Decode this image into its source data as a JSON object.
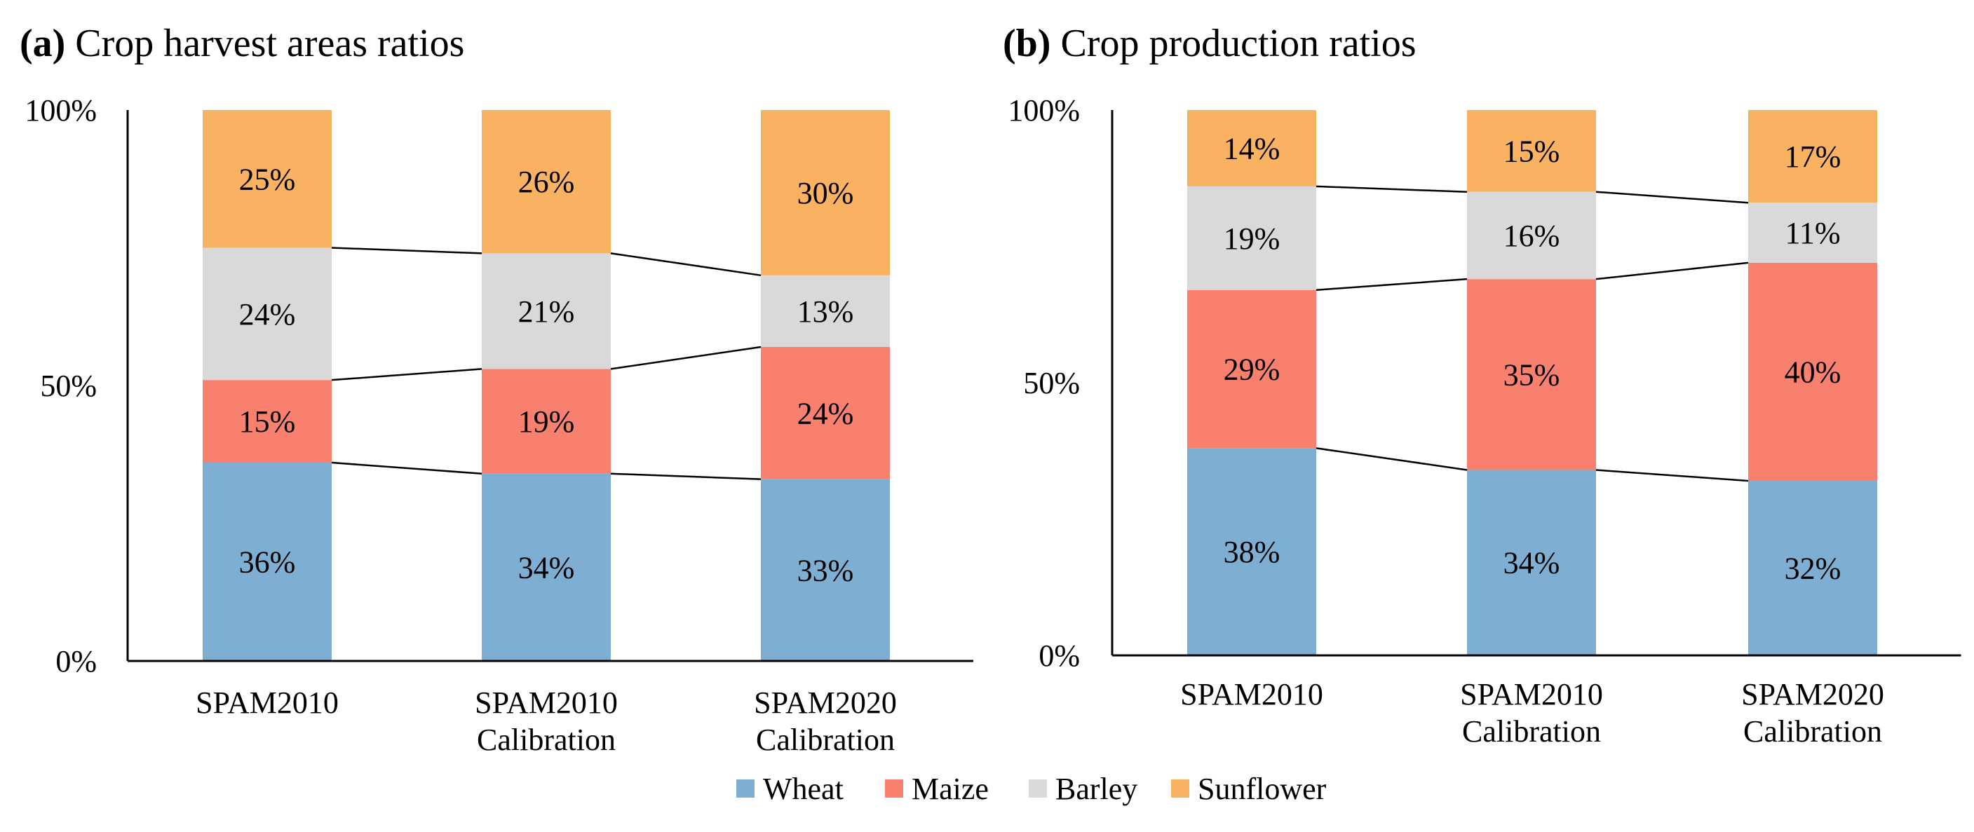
{
  "legend": [
    {
      "name": "Wheat",
      "color": "#7EAFD3"
    },
    {
      "name": "Maize",
      "color": "#F7806F"
    },
    {
      "name": "Barley",
      "color": "#D9D9D9"
    },
    {
      "name": "Sunflower",
      "color": "#F8B262"
    }
  ],
  "chart_data": [
    {
      "type": "bar",
      "stacked": true,
      "letter": "(a)",
      "title": "Crop harvest areas ratios",
      "categories": [
        [
          "SPAM2010"
        ],
        [
          "SPAM2010",
          "Calibration"
        ],
        [
          "SPAM2020",
          "Calibration"
        ]
      ],
      "series": [
        {
          "name": "Wheat",
          "values": [
            36,
            34,
            33
          ],
          "labels": [
            "36%",
            "34%",
            "33%"
          ]
        },
        {
          "name": "Maize",
          "values": [
            15,
            19,
            24
          ],
          "labels": [
            "15%",
            "19%",
            "24%"
          ]
        },
        {
          "name": "Barley",
          "values": [
            24,
            21,
            13
          ],
          "labels": [
            "24%",
            "21%",
            "13%"
          ]
        },
        {
          "name": "Sunflower",
          "values": [
            25,
            26,
            30
          ],
          "labels": [
            "25%",
            "26%",
            "30%"
          ]
        }
      ],
      "yticks": [
        "0%",
        "50%",
        "100%"
      ],
      "ylim": [
        0,
        100
      ],
      "series_lines": true
    },
    {
      "type": "bar",
      "stacked": true,
      "letter": "(b)",
      "title": "Crop production ratios",
      "categories": [
        [
          "SPAM2010"
        ],
        [
          "SPAM2010",
          "Calibration"
        ],
        [
          "SPAM2020",
          "Calibration"
        ]
      ],
      "series": [
        {
          "name": "Wheat",
          "values": [
            38,
            34,
            32
          ],
          "labels": [
            "38%",
            "34%",
            "32%"
          ]
        },
        {
          "name": "Maize",
          "values": [
            29,
            35,
            40
          ],
          "labels": [
            "29%",
            "35%",
            "40%"
          ]
        },
        {
          "name": "Barley",
          "values": [
            19,
            16,
            11
          ],
          "labels": [
            "19%",
            "16%",
            "11%"
          ]
        },
        {
          "name": "Sunflower",
          "values": [
            14,
            15,
            17
          ],
          "labels": [
            "14%",
            "15%",
            "17%"
          ]
        }
      ],
      "yticks": [
        "0%",
        "50%",
        "100%"
      ],
      "ylim": [
        0,
        100
      ],
      "series_lines": true
    }
  ]
}
